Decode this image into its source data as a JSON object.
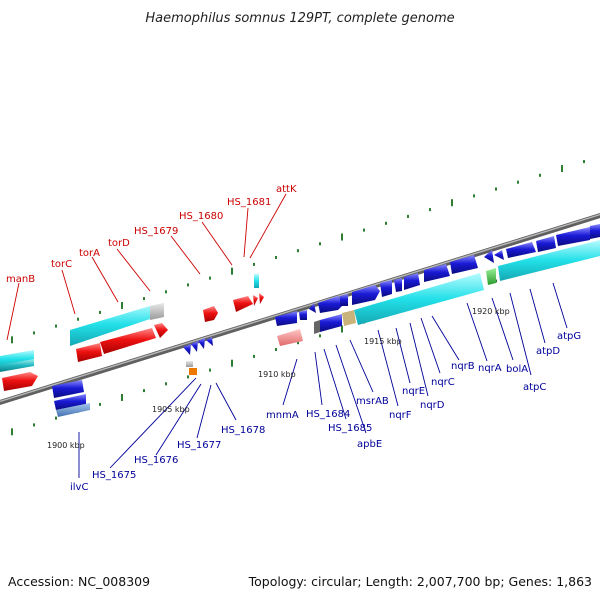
{
  "title": "Haemophilus somnus 129PT, complete genome",
  "footer": {
    "accession": "Accession: NC_008309",
    "summary": "Topology: circular; Length: 2,007,700 bp; Genes: 1,863"
  },
  "scale_labels": [
    "1900 kbp",
    "1905 kbp",
    "1910 kbp",
    "1915 kbp",
    "1920 kbp"
  ],
  "upper_labels": [
    "manB",
    "torC",
    "torA",
    "torD",
    "HS_1679",
    "HS_1680",
    "HS_1681",
    "attK"
  ],
  "lower_labels": [
    "ilvC",
    "HS_1675",
    "HS_1676",
    "HS_1677",
    "HS_1678",
    "mnmA",
    "HS_1684",
    "HS_1685",
    "msrAB",
    "apbE",
    "nqrF",
    "nqrE",
    "nqrD",
    "nqrC",
    "nqrB",
    "nqrA",
    "bolA",
    "atpC",
    "atpD",
    "atpG"
  ],
  "colors": {
    "backbone": "#808080",
    "tick": "#2e7d32",
    "upper_label": "#cc0000",
    "lower_label": "#000099",
    "gene_red": "#ee1111",
    "gene_blue": "#1a1ad6",
    "gene_cyan": "#22e0e8",
    "gene_teal": "#20b8c0"
  }
}
